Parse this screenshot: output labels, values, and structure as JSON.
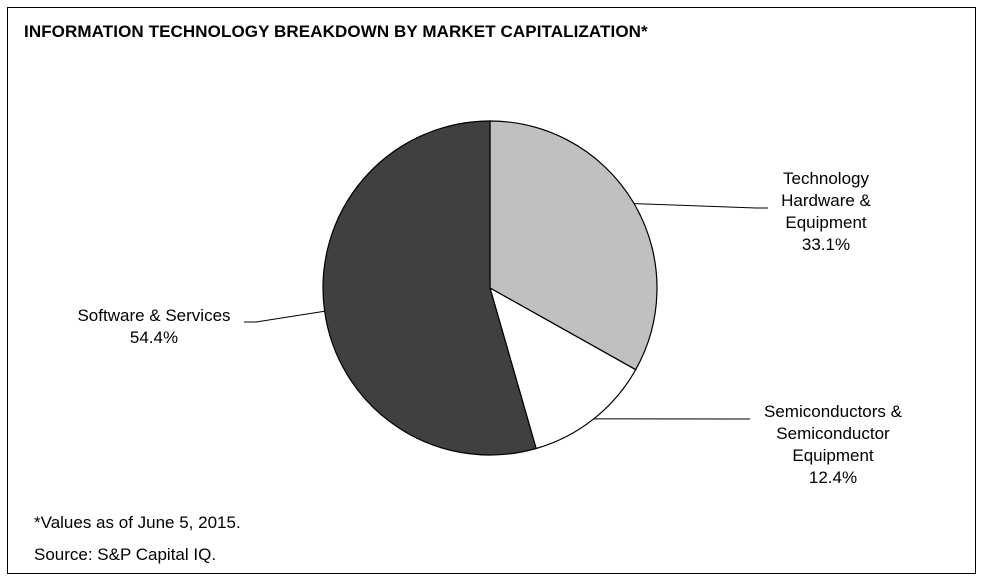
{
  "chart_data": {
    "type": "pie",
    "title": "INFORMATION TECHNOLOGY BREAKDOWN BY MARKET CAPITALIZATION*",
    "slices": [
      {
        "label_lines": [
          "Technology",
          "Hardware &",
          "Equipment"
        ],
        "value": 33.1,
        "value_label": "33.1%",
        "color": "#c0c0c0"
      },
      {
        "label_lines": [
          "Semiconductors &",
          "Semiconductor",
          "Equipment"
        ],
        "value": 12.4,
        "value_label": "12.4%",
        "color": "#ffffff"
      },
      {
        "label_lines": [
          "Software & Services"
        ],
        "value": 54.4,
        "value_label": "54.4%",
        "color": "#404040"
      }
    ],
    "start": "12 o'clock",
    "direction": "clockwise"
  },
  "footnotes": {
    "values_date": "*Values as of June 5, 2015.",
    "source": "Source: S&P Capital IQ."
  }
}
